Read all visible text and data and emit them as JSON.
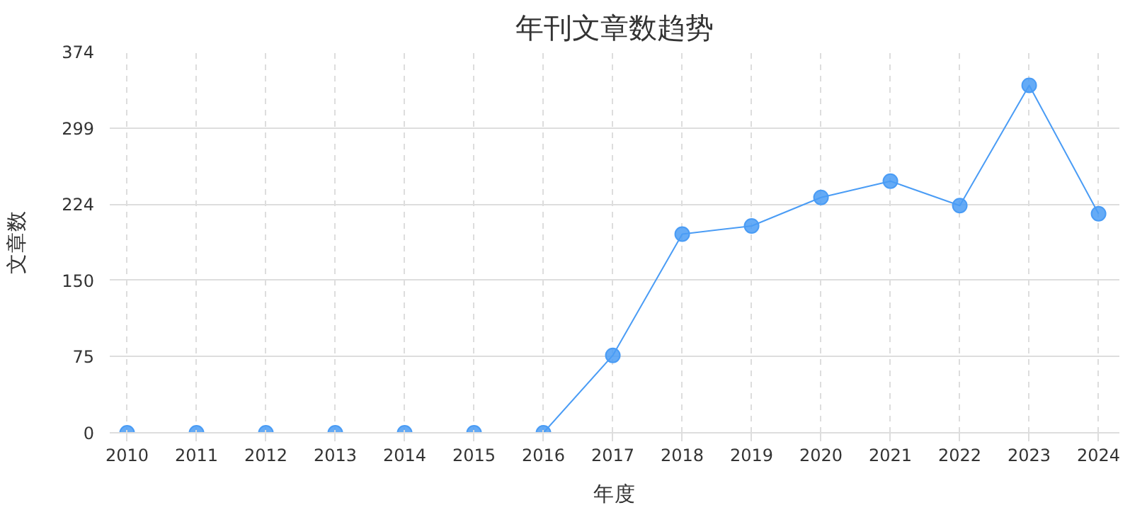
{
  "chart_data": {
    "type": "line",
    "title": "年刊文章数趋势",
    "xlabel": "年度",
    "ylabel": "文章数",
    "categories": [
      "2010",
      "2011",
      "2012",
      "2013",
      "2014",
      "2015",
      "2016",
      "2017",
      "2018",
      "2019",
      "2020",
      "2021",
      "2022",
      "2023",
      "2024"
    ],
    "series": [
      {
        "color": "#4a9cf5",
        "values": [
          0,
          0,
          0,
          0,
          0,
          0,
          0,
          76,
          195,
          203,
          231,
          247,
          223,
          341,
          215
        ]
      }
    ],
    "ylim": [
      0,
      374
    ],
    "yticks": [
      0,
      {
        "value": 74.8,
        "label": "75"
      },
      {
        "value": 149.6,
        "label": "150"
      },
      {
        "value": 224.4,
        "label": "224"
      },
      {
        "value": 299.2,
        "label": "299"
      },
      374
    ],
    "grid": true,
    "marker": "circle",
    "line_style": "solid"
  }
}
